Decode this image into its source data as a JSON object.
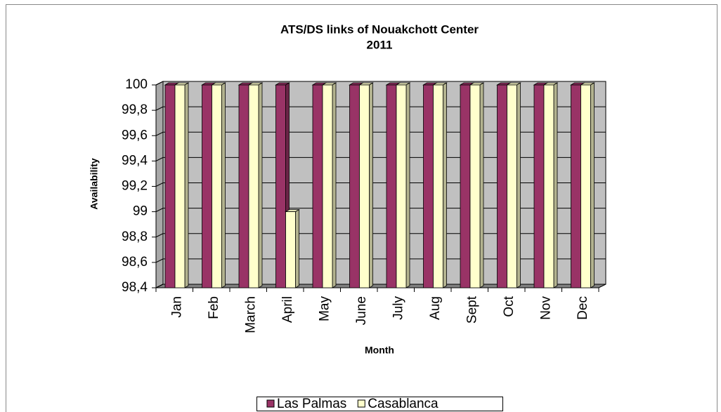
{
  "chart_data": {
    "type": "bar3d",
    "title": "ATS/DS links of Nouakchott Center",
    "subtitle": "2011",
    "x_label": "Month",
    "y_label": "Availability",
    "categories": [
      "Jan",
      "Feb",
      "March",
      "April",
      "May",
      "June",
      "July",
      "Aug",
      "Sept",
      "Oct",
      "Nov",
      "Dec"
    ],
    "series": [
      {
        "name": "Las Palmas",
        "color": "#993366",
        "values": [
          100,
          100,
          100,
          100,
          100,
          100,
          100,
          100,
          100,
          100,
          100,
          100
        ]
      },
      {
        "name": "Casablanca",
        "color": "#ffffcc",
        "values": [
          100,
          100,
          100,
          99,
          100,
          100,
          100,
          100,
          100,
          100,
          100,
          100
        ]
      }
    ],
    "ylim": [
      98.4,
      100
    ],
    "yticks": [
      {
        "value": 98.4,
        "label": "98,4"
      },
      {
        "value": 98.6,
        "label": "98,6"
      },
      {
        "value": 98.8,
        "label": "98,8"
      },
      99,
      {
        "value": 99.2,
        "label": "99,2"
      },
      {
        "value": 99.4,
        "label": "99,4"
      },
      {
        "value": 99.6,
        "label": "99,6"
      },
      {
        "value": 99.8,
        "label": "99,8"
      },
      100
    ],
    "grid": true,
    "legend": "bottom"
  }
}
